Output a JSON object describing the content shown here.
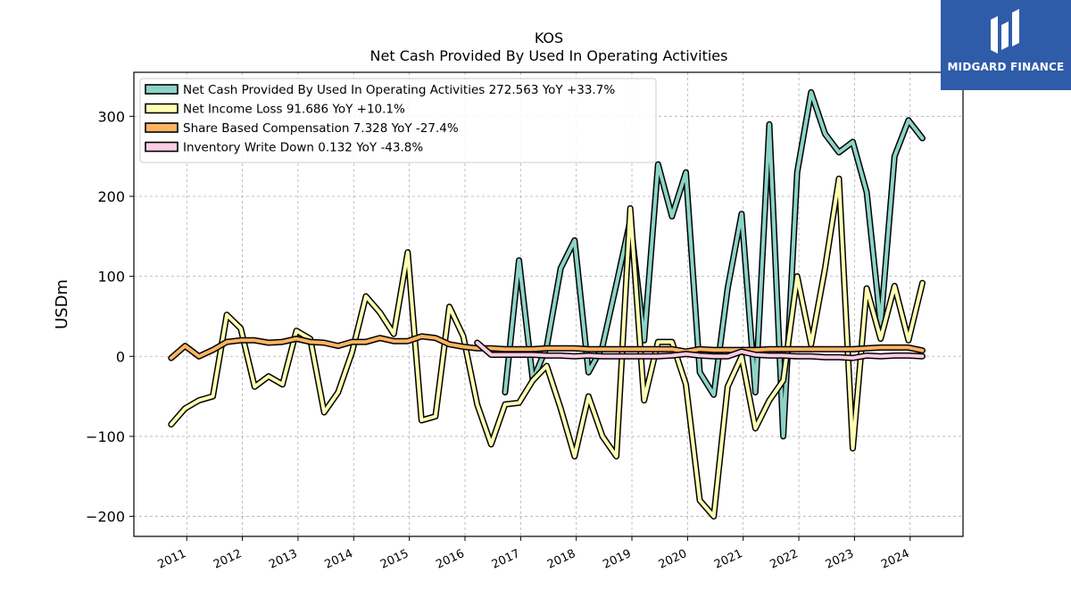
{
  "brand": {
    "name": "MIDGARD FINANCE",
    "bg_color": "#2f5ca8"
  },
  "chart_data": {
    "type": "line",
    "title": "KOS",
    "subtitle": "Net Cash Provided By Used In Operating Activities",
    "xlabel": "",
    "ylabel": "USDm",
    "xlim": [
      2010.05,
      2024.95
    ],
    "ylim": [
      -225,
      355
    ],
    "yticks": [
      -200,
      -100,
      0,
      100,
      200,
      300
    ],
    "ytick_labels": [
      "−200",
      "−100",
      "0",
      "100",
      "200",
      "300"
    ],
    "xticks": [
      "2011",
      "2012",
      "2013",
      "2014",
      "2015",
      "2016",
      "2017",
      "2018",
      "2019",
      "2020",
      "2021",
      "2022",
      "2023",
      "2024"
    ],
    "grid": true,
    "legend_position": "top-left",
    "series": [
      {
        "name": "Net Cash Provided By Used In Operating Activities",
        "legend_label": "Net Cash Provided By Used In Operating Activities  272.563 YoY +33.7%",
        "color": "#8dd3c7",
        "x": [
          2016.72,
          2016.97,
          2017.22,
          2017.47,
          2017.72,
          2017.97,
          2018.22,
          2018.47,
          2018.72,
          2018.97,
          2019.22,
          2019.47,
          2019.72,
          2019.97,
          2020.22,
          2020.47,
          2020.72,
          2020.97,
          2021.22,
          2021.47,
          2021.72,
          2021.97,
          2022.22,
          2022.47,
          2022.72,
          2022.97,
          2023.22,
          2023.47,
          2023.72,
          2023.97,
          2024.22
        ],
        "y": [
          -45,
          120,
          -30,
          12,
          110,
          145,
          -20,
          12,
          90,
          170,
          20,
          240,
          175,
          230,
          -20,
          -48,
          85,
          178,
          -45,
          290,
          -100,
          230,
          330,
          278,
          255,
          268,
          205,
          40,
          250,
          295,
          272.563
        ]
      },
      {
        "name": "Net Income Loss",
        "legend_label": "Net Income Loss  91.686 YoY +10.1%",
        "color": "#ffffb3",
        "x": [
          2010.72,
          2010.97,
          2011.22,
          2011.47,
          2011.72,
          2011.97,
          2012.22,
          2012.47,
          2012.72,
          2012.97,
          2013.22,
          2013.47,
          2013.72,
          2013.97,
          2014.22,
          2014.47,
          2014.72,
          2014.97,
          2015.22,
          2015.47,
          2015.72,
          2015.97,
          2016.22,
          2016.47,
          2016.72,
          2016.97,
          2017.22,
          2017.47,
          2017.72,
          2017.97,
          2018.22,
          2018.47,
          2018.72,
          2018.97,
          2019.22,
          2019.47,
          2019.72,
          2019.97,
          2020.22,
          2020.47,
          2020.72,
          2020.97,
          2021.22,
          2021.47,
          2021.72,
          2021.97,
          2022.22,
          2022.47,
          2022.72,
          2022.97,
          2023.22,
          2023.47,
          2023.72,
          2023.97,
          2024.22
        ],
        "y": [
          -85,
          -65,
          -55,
          -50,
          52,
          35,
          -38,
          -25,
          -35,
          32,
          22,
          -70,
          -45,
          5,
          75,
          55,
          28,
          130,
          -80,
          -75,
          62,
          25,
          -60,
          -110,
          -60,
          -58,
          -30,
          -12,
          -65,
          -125,
          -50,
          -100,
          -125,
          185,
          -55,
          18,
          18,
          -35,
          -180,
          -200,
          -38,
          0,
          -90,
          -55,
          -30,
          100,
          15,
          110,
          222,
          -115,
          85,
          22,
          88,
          20,
          91.686
        ]
      },
      {
        "name": "Share Based Compensation",
        "legend_label": "Share Based Compensation  7.328 YoY -27.4%",
        "color": "#fdb462",
        "x": [
          2010.72,
          2010.97,
          2011.22,
          2011.47,
          2011.72,
          2011.97,
          2012.22,
          2012.47,
          2012.72,
          2012.97,
          2013.22,
          2013.47,
          2013.72,
          2013.97,
          2014.22,
          2014.47,
          2014.72,
          2014.97,
          2015.22,
          2015.47,
          2015.72,
          2015.97,
          2016.22,
          2016.47,
          2016.72,
          2016.97,
          2017.22,
          2017.47,
          2017.72,
          2017.97,
          2018.22,
          2018.47,
          2018.72,
          2018.97,
          2019.22,
          2019.47,
          2019.72,
          2019.97,
          2020.22,
          2020.47,
          2020.72,
          2020.97,
          2021.22,
          2021.47,
          2021.72,
          2021.97,
          2022.22,
          2022.47,
          2022.72,
          2022.97,
          2023.22,
          2023.47,
          2023.72,
          2023.97,
          2024.22
        ],
        "y": [
          -2,
          13,
          0,
          8,
          18,
          20,
          20,
          17,
          18,
          22,
          18,
          17,
          13,
          18,
          18,
          23,
          19,
          19,
          25,
          23,
          15,
          12,
          10,
          10,
          9,
          9,
          9,
          10,
          10,
          10,
          9,
          9,
          9,
          9,
          9,
          9,
          9,
          6,
          9,
          8,
          8,
          8,
          8,
          9,
          9,
          9,
          9,
          9,
          9,
          9,
          10,
          11,
          11,
          11,
          7.328
        ]
      },
      {
        "name": "Inventory Write Down",
        "legend_label": "Inventory Write Down  0.132 YoY -43.8%",
        "color": "#fccde5",
        "x": [
          2016.22,
          2016.47,
          2016.72,
          2016.97,
          2017.22,
          2017.47,
          2017.72,
          2017.97,
          2018.22,
          2018.47,
          2018.72,
          2018.97,
          2019.22,
          2019.47,
          2019.72,
          2019.97,
          2020.22,
          2020.47,
          2020.72,
          2020.97,
          2021.22,
          2021.47,
          2021.72,
          2021.97,
          2022.22,
          2022.47,
          2022.72,
          2022.97,
          2023.22,
          2023.47,
          2023.72,
          2023.97,
          2024.22
        ],
        "y": [
          17,
          2,
          2,
          2,
          2,
          1,
          1,
          0,
          1,
          0,
          0,
          0,
          0,
          0,
          1,
          3,
          1,
          0,
          0,
          6,
          2,
          1,
          1,
          0,
          0,
          -1,
          -1,
          -2,
          1,
          0,
          1,
          1,
          0.132
        ]
      }
    ]
  }
}
